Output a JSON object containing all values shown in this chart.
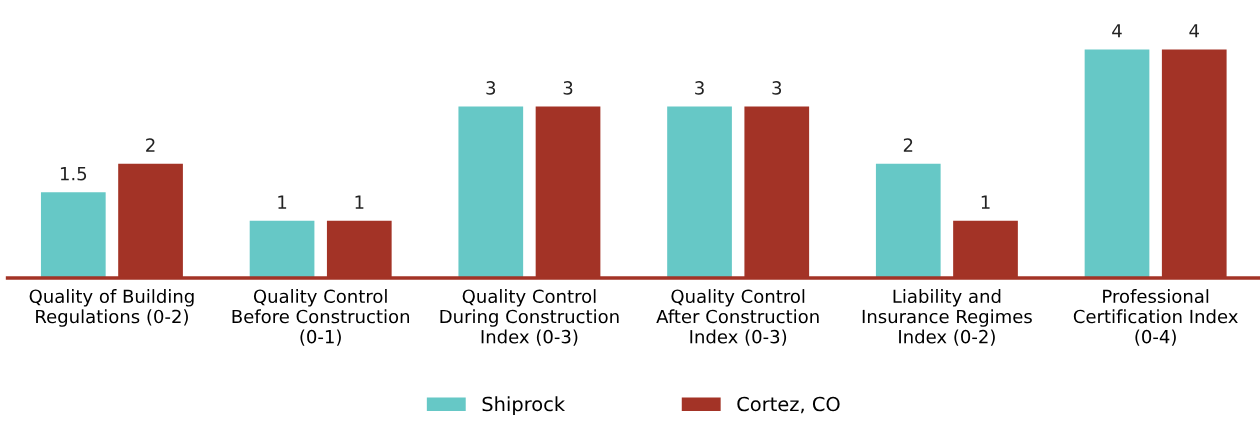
{
  "chart_data": {
    "type": "bar",
    "categories": [
      "Quality of Building\nRegulations (0-2)",
      "Quality Control\nBefore Construction\n(0-1)",
      "Quality Control\nDuring Construction\nIndex (0-3)",
      "Quality Control\nAfter Construction\nIndex (0-3)",
      "Liability and\nInsurance Regimes\nIndex (0-2)",
      "Professional\nCertification Index\n(0-4)"
    ],
    "series": [
      {
        "name": "Shiprock",
        "color": "#66c8c6",
        "values": [
          1.5,
          1,
          3,
          3,
          2,
          4
        ]
      },
      {
        "name": "Cortez, CO",
        "color": "#a33326",
        "values": [
          2,
          1,
          3,
          3,
          1,
          4
        ]
      }
    ],
    "data_labels": true,
    "tick_labels": "x",
    "legend": "bottom",
    "grid": false
  }
}
